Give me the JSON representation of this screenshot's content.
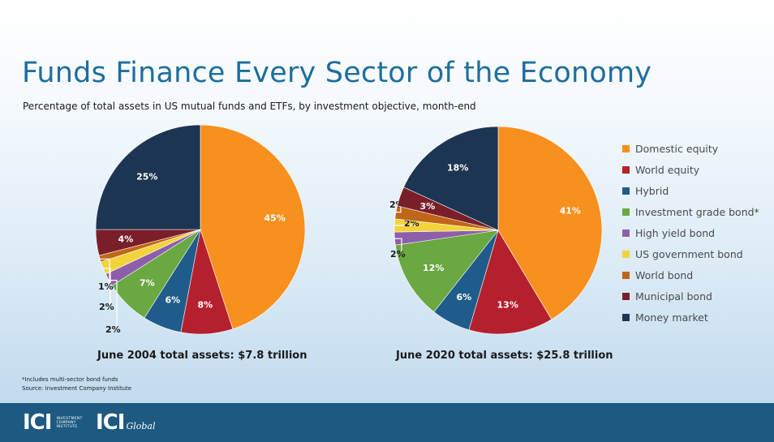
{
  "title": "Funds Finance Every Sector of the Economy",
  "subtitle": "Percentage of total assets in US mutual funds and ETFs, by investment objective, month-end",
  "legend": [
    {
      "label": "Domestic equity",
      "color": "#f7901e"
    },
    {
      "label": "World equity",
      "color": "#b5202e"
    },
    {
      "label": "Hybrid",
      "color": "#1f5c8b"
    },
    {
      "label": "Investment grade bond*",
      "color": "#6aa842"
    },
    {
      "label": "High yield bond",
      "color": "#8d5fab"
    },
    {
      "label": "US government bond",
      "color": "#f2d33c"
    },
    {
      "label": "World bond",
      "color": "#c06616"
    },
    {
      "label": "Municipal bond",
      "color": "#7a1f2a"
    },
    {
      "label": "Money market",
      "color": "#1c3553"
    }
  ],
  "chart_data": [
    {
      "type": "pie",
      "title": "June 2004 total assets: $7.8 trillion",
      "categories": [
        "Domestic equity",
        "World equity",
        "Hybrid",
        "Investment grade bond*",
        "High yield bond",
        "US government bond",
        "World bond",
        "Municipal bond",
        "Money market"
      ],
      "values": [
        45,
        8,
        6,
        7,
        2,
        2,
        1,
        4,
        25
      ],
      "labels": [
        "45%",
        "8%",
        "6%",
        "7%",
        "2%",
        "2%",
        "1%",
        "4%",
        "25%"
      ]
    },
    {
      "type": "pie",
      "title": "June 2020 total assets: $25.8 trillion",
      "categories": [
        "Domestic equity",
        "World equity",
        "Hybrid",
        "Investment grade bond*",
        "High yield bond",
        "US government bond",
        "World bond",
        "Municipal bond",
        "Money market"
      ],
      "values": [
        41,
        13,
        6,
        12,
        2,
        2,
        2,
        3,
        18
      ],
      "labels": [
        "41%",
        "13%",
        "6%",
        "12%",
        "2%",
        "2%",
        "2%",
        "3%",
        "18%"
      ]
    }
  ],
  "footnotes": {
    "note": "*Includes multi-sector bond funds",
    "source": "Source: Investment Company Institute"
  },
  "footer": {
    "logo1_mark": "ICI",
    "logo1_small": "Investment Company Institute",
    "logo2_mark": "ICI",
    "logo2_suffix": "Global"
  }
}
